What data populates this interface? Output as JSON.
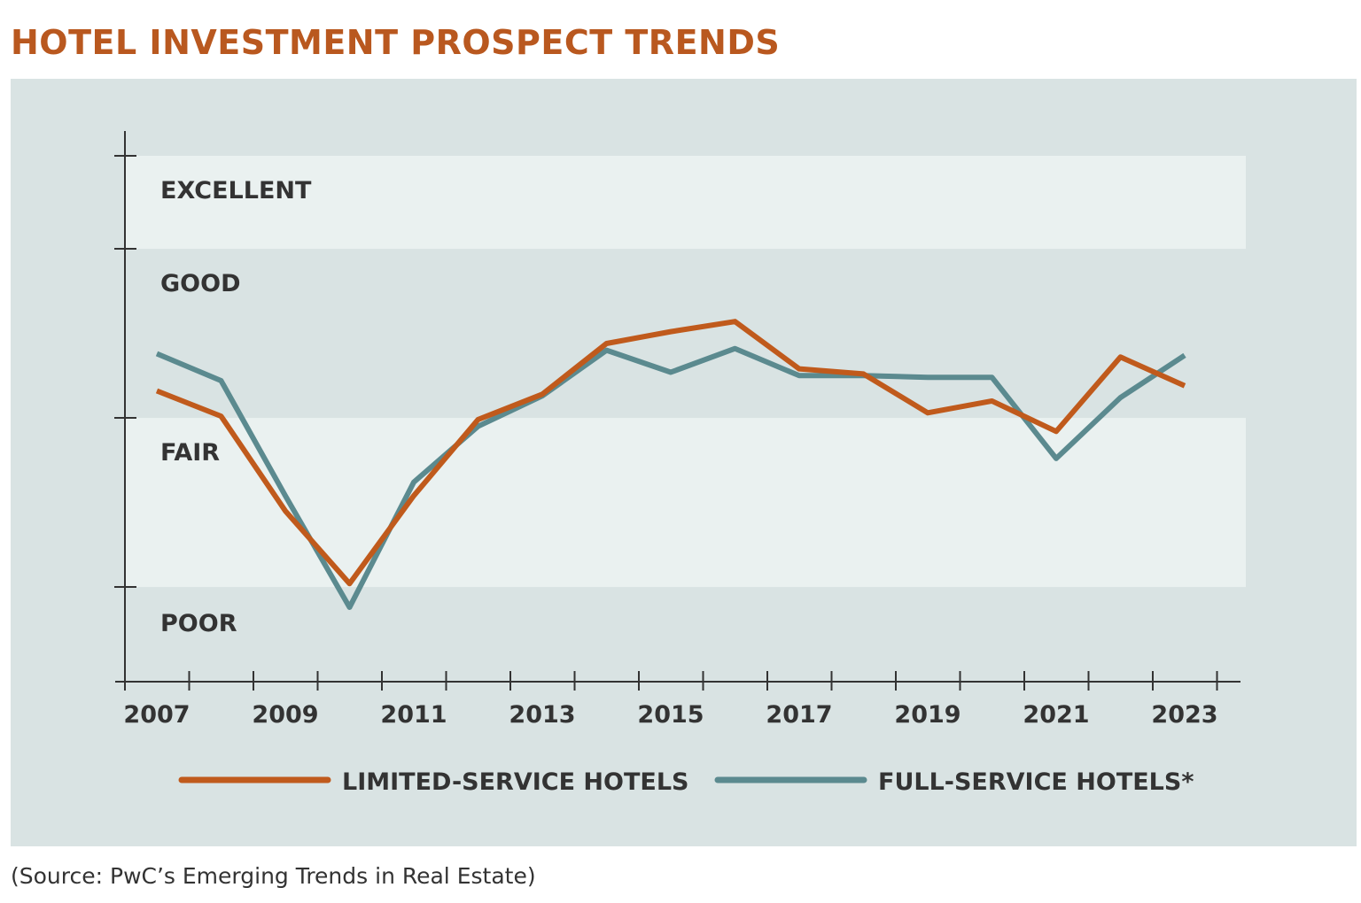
{
  "title": "HOTEL INVESTMENT PROSPECT TRENDS",
  "source": "(Source: PwC’s Emerging Trends in Real Estate)",
  "colors": {
    "title": "#b9581f",
    "limited": "#c05a1c",
    "full": "#5b8a8f",
    "panel": "#d9e3e3",
    "band_light": "#eaf1f0"
  },
  "chart_data": {
    "type": "line",
    "title": "HOTEL INVESTMENT PROSPECT TRENDS",
    "x": [
      2007,
      2008,
      2009,
      2010,
      2011,
      2012,
      2013,
      2014,
      2015,
      2016,
      2017,
      2018,
      2019,
      2020,
      2021,
      2022,
      2023
    ],
    "x_tick_labels": [
      "2007",
      "2009",
      "2011",
      "2013",
      "2015",
      "2017",
      "2019",
      "2021",
      "2023"
    ],
    "y_categories": [
      "POOR",
      "FAIR",
      "GOOD",
      "EXCELLENT"
    ],
    "y_band_bounds": [
      2,
      3,
      4
    ],
    "ylim": [
      1.44,
      4.55
    ],
    "grid": false,
    "legend_placement": "bottom",
    "series": [
      {
        "name": "LIMITED-SERVICE HOTELS",
        "values": [
          3.16,
          3.01,
          2.45,
          2.02,
          2.54,
          2.99,
          3.14,
          3.44,
          3.51,
          3.57,
          3.29,
          3.26,
          3.03,
          3.1,
          2.92,
          3.36,
          3.19
        ]
      },
      {
        "name": "FULL-SERVICE HOTELS*",
        "values": [
          3.38,
          3.22,
          2.54,
          1.88,
          2.62,
          2.95,
          3.13,
          3.4,
          3.27,
          3.41,
          3.25,
          3.25,
          3.24,
          3.24,
          2.76,
          3.12,
          3.37
        ]
      }
    ]
  }
}
